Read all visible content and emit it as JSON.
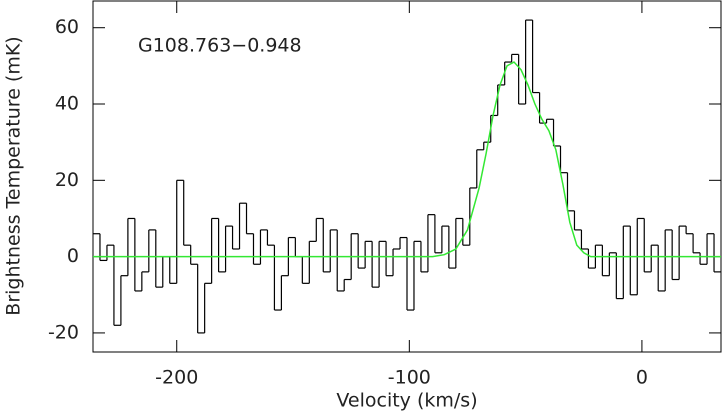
{
  "chart_data": {
    "type": "step",
    "annotation": "G108.763−0.948",
    "x_label": "Velocity (km/s)",
    "y_label": "Brightness Temperature (mK)",
    "xlim": [
      -236,
      34
    ],
    "ylim": [
      -25,
      67
    ],
    "xticks": [
      -200,
      -100,
      0
    ],
    "yticks": [
      -20,
      0,
      20,
      40,
      60
    ],
    "series": [
      {
        "name": "spectrum",
        "color": "#000000",
        "bins": [
          -236,
          -233,
          -230,
          -227,
          -224,
          -221,
          -218,
          -215,
          -212,
          -209,
          -206,
          -203,
          -200,
          -197,
          -194,
          -191,
          -188,
          -185,
          -182,
          -179,
          -176,
          -173,
          -170,
          -167,
          -164,
          -161,
          -158,
          -155,
          -152,
          -149,
          -146,
          -143,
          -140,
          -137,
          -134,
          -131,
          -128,
          -125,
          -122,
          -119,
          -116,
          -113,
          -110,
          -107,
          -104,
          -101,
          -98,
          -95,
          -92,
          -89,
          -86,
          -83,
          -80,
          -77,
          -74,
          -71,
          -68,
          -65,
          -62,
          -59,
          -56,
          -53,
          -50,
          -47,
          -44,
          -41,
          -38,
          -35,
          -32,
          -29,
          -26,
          -23,
          -20,
          -17,
          -14,
          -11,
          -8,
          -5,
          -2,
          1,
          4,
          7,
          10,
          13,
          16,
          19,
          22,
          25,
          28,
          31,
          34
        ],
        "values": [
          6,
          -1,
          3,
          -18,
          -5,
          10,
          -9,
          -4,
          7,
          -8,
          0,
          -7,
          20,
          3,
          -2,
          -20,
          -7,
          10,
          -4,
          8,
          2,
          14,
          6,
          -2,
          7,
          3,
          -14,
          -5,
          5,
          0,
          -7,
          4,
          10,
          -4,
          7,
          -9,
          -6,
          6,
          -3,
          4,
          -8,
          4,
          -5,
          2,
          5,
          -14,
          4,
          -4,
          11,
          1,
          8,
          -3,
          10,
          3,
          18,
          28,
          30,
          37,
          45,
          51,
          53,
          40,
          62,
          43,
          35,
          36,
          29,
          22,
          12,
          7,
          2,
          -3,
          3,
          -5,
          1,
          -11,
          8,
          -10,
          10,
          -4,
          3,
          -9,
          7,
          -6,
          8,
          6,
          1,
          -2,
          6,
          -4
        ]
      },
      {
        "name": "fit",
        "color": "#33e833",
        "x": [
          -236,
          -90,
          -85,
          -80,
          -75,
          -70,
          -67,
          -64,
          -61,
          -58,
          -55,
          -52,
          -49,
          -46,
          -43,
          -40,
          -37,
          -34,
          -31,
          -28,
          -25,
          -22,
          34
        ],
        "values": [
          0,
          0,
          0.5,
          2,
          7,
          18,
          27,
          37,
          45,
          50,
          51,
          49,
          45,
          40,
          36,
          33,
          28,
          19,
          9,
          3,
          1,
          0,
          0
        ]
      }
    ]
  }
}
